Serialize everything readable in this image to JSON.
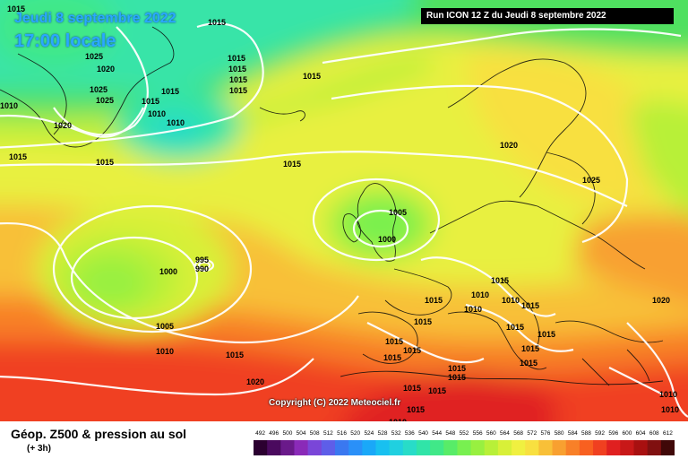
{
  "header": {
    "date": "Jeudi 8 septembre 2022",
    "time": "17:00 locale",
    "run": "Run ICON 12 Z du Jeudi 8 septembre 2022"
  },
  "map": {
    "copyright": "Copyright (C) 2022 Meteociel.fr",
    "isobar_labels": [
      "1015",
      "1015",
      "1025",
      "1020",
      "1015",
      "1015",
      "1015",
      "1015",
      "1025",
      "1025",
      "1015",
      "1015",
      "1010",
      "1010",
      "1020",
      "1015",
      "1015",
      "1015",
      "1015",
      "1020",
      "1010",
      "1005",
      "1000",
      "1025",
      "1000",
      "995",
      "990",
      "1005",
      "1010",
      "1015",
      "1020",
      "1015",
      "1015",
      "1015",
      "1010",
      "1010",
      "1015",
      "1015",
      "1010",
      "1015",
      "1015",
      "1015",
      "1020",
      "1015",
      "1015",
      "1015",
      "1015",
      "1015",
      "1015",
      "1015",
      "1015",
      "1010",
      "1010",
      "1010"
    ]
  },
  "legend": {
    "title": "Géop. Z500 & pression au sol",
    "subtitle": "(+ 3h)",
    "scale_labels": [
      "492",
      "496",
      "500",
      "504",
      "508",
      "512",
      "516",
      "520",
      "524",
      "528",
      "532",
      "536",
      "540",
      "544",
      "548",
      "552",
      "556",
      "560",
      "564",
      "568",
      "572",
      "576",
      "580",
      "584",
      "588",
      "592",
      "596",
      "600",
      "604",
      "608",
      "612"
    ],
    "scale_colors": [
      "#2b0030",
      "#4a0a5e",
      "#6a1a8a",
      "#8a2ab8",
      "#7a46d8",
      "#5e5ee8",
      "#3a78f0",
      "#2a90f8",
      "#1aa8f8",
      "#18c0f0",
      "#20d0e0",
      "#28dcc8",
      "#30e4a8",
      "#40e888",
      "#58ec68",
      "#78f050",
      "#98f040",
      "#b8f038",
      "#d8f038",
      "#f0f040",
      "#f8e040",
      "#f8c038",
      "#f8a030",
      "#f88028",
      "#f86020",
      "#f04020",
      "#e02020",
      "#c81818",
      "#a81010",
      "#801010",
      "#400808"
    ]
  }
}
